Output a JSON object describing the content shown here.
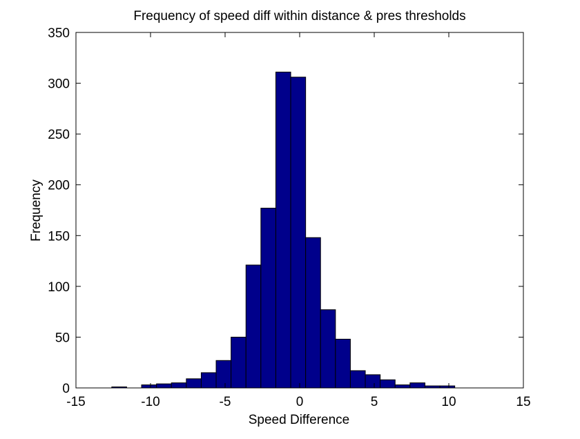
{
  "chart_data": {
    "type": "bar",
    "title": "Frequency of speed diff within distance & pres thresholds",
    "xlabel": "Speed Difference",
    "ylabel": "Frequency",
    "xlim": [
      -15,
      15
    ],
    "ylim": [
      0,
      350
    ],
    "xticks": [
      "-15",
      "-10",
      "-5",
      "0",
      "5",
      "10",
      "15"
    ],
    "yticks": [
      "0",
      "50",
      "100",
      "150",
      "200",
      "250",
      "300",
      "350"
    ],
    "bin_width": 1.0,
    "bin_centers": [
      -12.1,
      -11.1,
      -10.1,
      -9.1,
      -8.1,
      -7.1,
      -6.1,
      -5.1,
      -4.1,
      -3.1,
      -2.1,
      -1.1,
      -0.1,
      0.9,
      1.9,
      2.9,
      3.9,
      4.9,
      5.9,
      6.9,
      7.9,
      8.9,
      9.9
    ],
    "values": [
      1,
      0,
      3,
      4,
      5,
      9,
      15,
      27,
      50,
      121,
      177,
      311,
      306,
      148,
      77,
      48,
      17,
      13,
      8,
      3,
      5,
      2,
      2
    ],
    "bar_color": "#00008B",
    "edge_color": "#000000",
    "grid": false,
    "legend": false
  }
}
